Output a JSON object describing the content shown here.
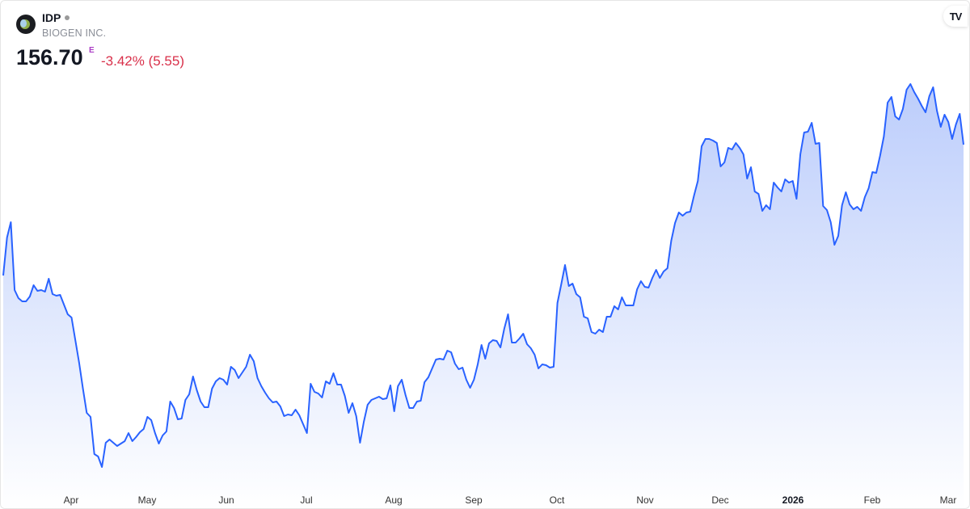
{
  "header": {
    "symbol": "IDP",
    "company": "BIOGEN INC.",
    "price": "156.70",
    "price_flag": "E",
    "change": "-3.42% (5.55)"
  },
  "colors": {
    "line": "#2962ff",
    "fill_top": "#bccdfb",
    "fill_bottom": "#ffffff",
    "negative": "#d9304a",
    "flag": "#a93ac4"
  },
  "logo_watermark": "TV",
  "chart_data": {
    "type": "area",
    "title": "",
    "ylim": [
      111.5,
      174.5
    ],
    "grid": false,
    "x_tick_labels": [
      {
        "label": "Apr",
        "bold": false
      },
      {
        "label": "May",
        "bold": false
      },
      {
        "label": "Jun",
        "bold": false
      },
      {
        "label": "Jul",
        "bold": false
      },
      {
        "label": "Aug",
        "bold": false
      },
      {
        "label": "Sep",
        "bold": false
      },
      {
        "label": "Oct",
        "bold": false
      },
      {
        "label": "Nov",
        "bold": false
      },
      {
        "label": "Dec",
        "bold": false
      },
      {
        "label": "2026",
        "bold": true
      },
      {
        "label": "Feb",
        "bold": false
      },
      {
        "label": "Mar",
        "bold": false
      }
    ],
    "values": [
      140.5,
      145.2,
      147.1,
      138.7,
      137.7,
      137.3,
      137.3,
      137.9,
      139.3,
      138.6,
      138.7,
      138.5,
      140.1,
      138.2,
      138.0,
      138.1,
      136.9,
      135.7,
      135.3,
      132.5,
      129.7,
      126.5,
      123.5,
      123.0,
      118.4,
      118.1,
      116.8,
      119.8,
      120.2,
      119.8,
      119.4,
      119.7,
      120.0,
      121.0,
      120.0,
      120.5,
      121.1,
      121.5,
      123.0,
      122.6,
      121.0,
      119.7,
      120.7,
      121.2,
      124.9,
      124.1,
      122.7,
      122.8,
      125.1,
      125.8,
      128.0,
      126.3,
      124.9,
      124.2,
      124.2,
      126.5,
      127.4,
      127.8,
      127.6,
      127.0,
      129.2,
      128.8,
      127.8,
      128.5,
      129.2,
      130.7,
      129.9,
      127.8,
      126.8,
      126.0,
      125.3,
      124.8,
      124.9,
      124.3,
      123.1,
      123.3,
      123.2,
      123.9,
      123.2,
      122.1,
      121.0,
      127.1,
      126.1,
      125.9,
      125.4,
      127.4,
      127.1,
      128.4,
      127.0,
      127.0,
      125.6,
      123.5,
      124.7,
      123.1,
      119.8,
      122.4,
      124.5,
      125.1,
      125.3,
      125.5,
      125.2,
      125.3,
      126.9,
      123.7,
      126.8,
      127.6,
      125.7,
      124.1,
      124.1,
      124.9,
      125.0,
      127.3,
      127.9,
      129.0,
      130.1,
      130.2,
      130.1,
      131.2,
      131.0,
      129.6,
      128.9,
      129.1,
      127.6,
      126.6,
      127.6,
      129.5,
      131.9,
      130.2,
      132.1,
      132.5,
      132.4,
      131.6,
      133.9,
      135.7,
      132.2,
      132.2,
      132.7,
      133.3,
      132.0,
      131.5,
      130.7,
      129.0,
      129.5,
      129.4,
      129.1,
      129.2,
      137.1,
      139.4,
      141.8,
      139.2,
      139.5,
      138.2,
      137.8,
      135.4,
      135.2,
      133.5,
      133.3,
      133.8,
      133.5,
      135.4,
      135.4,
      136.7,
      136.3,
      137.8,
      136.8,
      136.8,
      136.8,
      138.8,
      139.8,
      139.1,
      139.0,
      140.2,
      141.2,
      140.2,
      141.0,
      141.4,
      144.8,
      147.0,
      148.3,
      147.9,
      148.3,
      148.4,
      150.4,
      152.2,
      156.5,
      157.4,
      157.4,
      157.2,
      156.9,
      154.0,
      154.5,
      156.3,
      156.1,
      156.9,
      156.3,
      155.5,
      152.5,
      153.9,
      150.9,
      150.6,
      148.5,
      149.2,
      148.7,
      152.0,
      151.4,
      150.9,
      152.4,
      152.0,
      152.2,
      150.0,
      155.5,
      158.2,
      158.3,
      159.4,
      156.8,
      156.9,
      149.1,
      148.6,
      147.1,
      144.3,
      145.4,
      149.2,
      150.8,
      149.3,
      148.7,
      149.0,
      148.5,
      150.2,
      151.3,
      153.3,
      153.2,
      155.3,
      157.7,
      161.9,
      162.6,
      160.2,
      159.8,
      161.1,
      163.5,
      164.2,
      163.2,
      162.4,
      161.5,
      160.7,
      162.7,
      163.8,
      160.9,
      158.9,
      160.4,
      159.5,
      157.4,
      159.2,
      160.5,
      156.7
    ]
  }
}
